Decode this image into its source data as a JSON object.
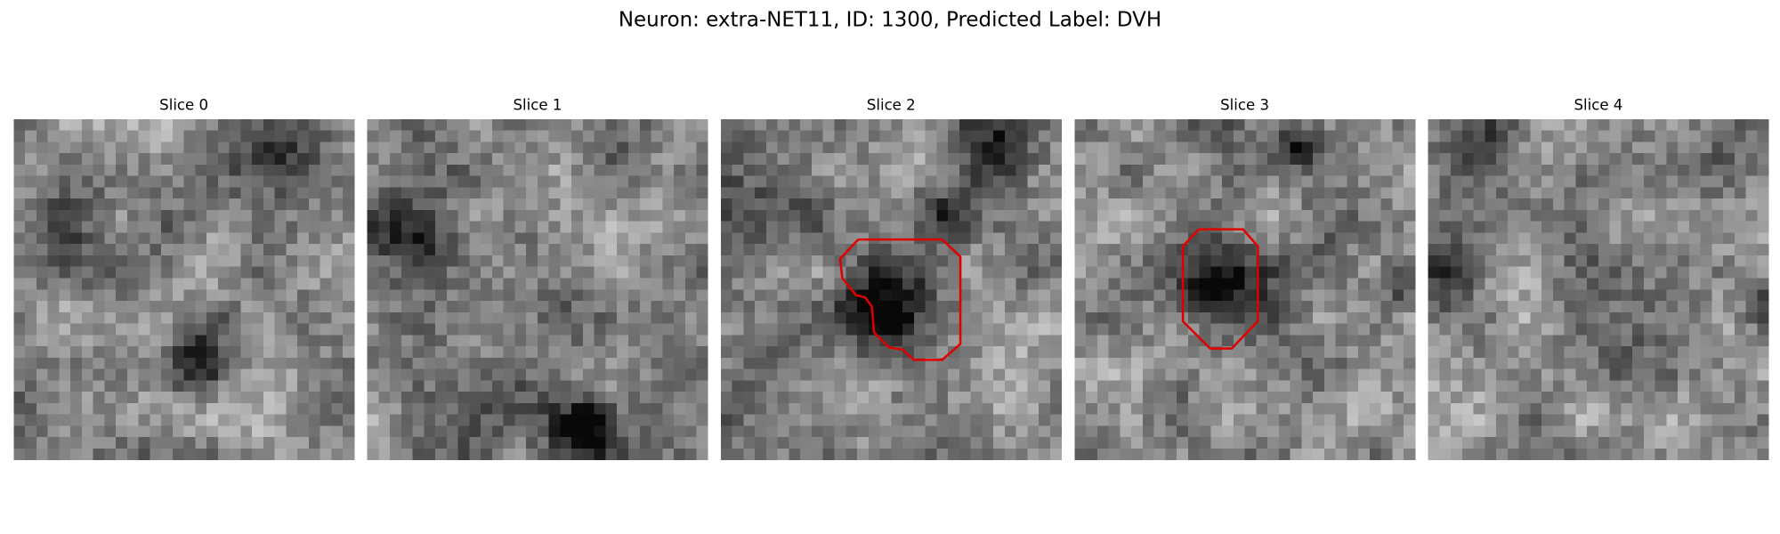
{
  "title": "Neuron: extra-NET11, ID: 1300, Predicted Label: DVH",
  "panels": [
    {
      "label": "Slice 0"
    },
    {
      "label": "Slice 1"
    },
    {
      "label": "Slice 2"
    },
    {
      "label": "Slice 3"
    },
    {
      "label": "Slice 4"
    }
  ]
}
